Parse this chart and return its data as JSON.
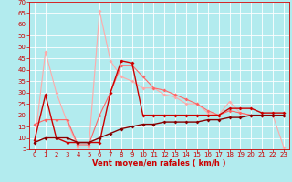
{
  "xlabel": "Vent moyen/en rafales ( km/h )",
  "xlim": [
    -0.5,
    23.5
  ],
  "ylim": [
    5,
    70
  ],
  "yticks": [
    5,
    10,
    15,
    20,
    25,
    30,
    35,
    40,
    45,
    50,
    55,
    60,
    65,
    70
  ],
  "xticks": [
    0,
    1,
    2,
    3,
    4,
    5,
    6,
    7,
    8,
    9,
    10,
    11,
    12,
    13,
    14,
    15,
    16,
    17,
    18,
    19,
    20,
    21,
    22,
    23
  ],
  "bg_color": "#b2ebee",
  "grid_color": "#ffffff",
  "line1_color": "#ffaaaa",
  "line2_color": "#ff6666",
  "line3_color": "#cc0000",
  "line4_color": "#880000",
  "line1_x": [
    0,
    1,
    2,
    3,
    4,
    5,
    6,
    7,
    8,
    9,
    10,
    11,
    12,
    13,
    14,
    15,
    16,
    17,
    18,
    19,
    20,
    21,
    22,
    23
  ],
  "line1_y": [
    8,
    48,
    30,
    17,
    6,
    6,
    66,
    44,
    37,
    35,
    32,
    32,
    29,
    28,
    25,
    25,
    21,
    20,
    26,
    21,
    20,
    20,
    20,
    6
  ],
  "line2_x": [
    0,
    1,
    2,
    3,
    4,
    5,
    6,
    7,
    8,
    9,
    10,
    11,
    12,
    13,
    14,
    15,
    16,
    17,
    18,
    19,
    20,
    21,
    22,
    23
  ],
  "line2_y": [
    16,
    18,
    18,
    18,
    7,
    7,
    20,
    30,
    42,
    42,
    37,
    32,
    31,
    29,
    27,
    25,
    22,
    20,
    22,
    21,
    20,
    20,
    20,
    20
  ],
  "line3_x": [
    0,
    1,
    2,
    3,
    4,
    5,
    6,
    7,
    8,
    9,
    10,
    11,
    12,
    13,
    14,
    15,
    16,
    17,
    18,
    19,
    20,
    21,
    22,
    23
  ],
  "line3_y": [
    9,
    29,
    10,
    8,
    8,
    8,
    8,
    30,
    44,
    43,
    20,
    20,
    20,
    20,
    20,
    20,
    20,
    20,
    23,
    23,
    23,
    21,
    21,
    21
  ],
  "line4_x": [
    0,
    1,
    2,
    3,
    4,
    5,
    6,
    7,
    8,
    9,
    10,
    11,
    12,
    13,
    14,
    15,
    16,
    17,
    18,
    19,
    20,
    21,
    22,
    23
  ],
  "line4_y": [
    8,
    10,
    10,
    10,
    8,
    8,
    10,
    12,
    14,
    15,
    16,
    16,
    17,
    17,
    17,
    17,
    18,
    18,
    19,
    19,
    20,
    20,
    20,
    20
  ],
  "marker_size": 2.0,
  "linewidth1": 0.8,
  "linewidth2": 0.8,
  "linewidth3": 1.0,
  "linewidth4": 1.0,
  "tick_labelsize": 5.0,
  "xlabel_fontsize": 6.0,
  "tick_color": "#cc0000",
  "spine_color": "#cc0000"
}
